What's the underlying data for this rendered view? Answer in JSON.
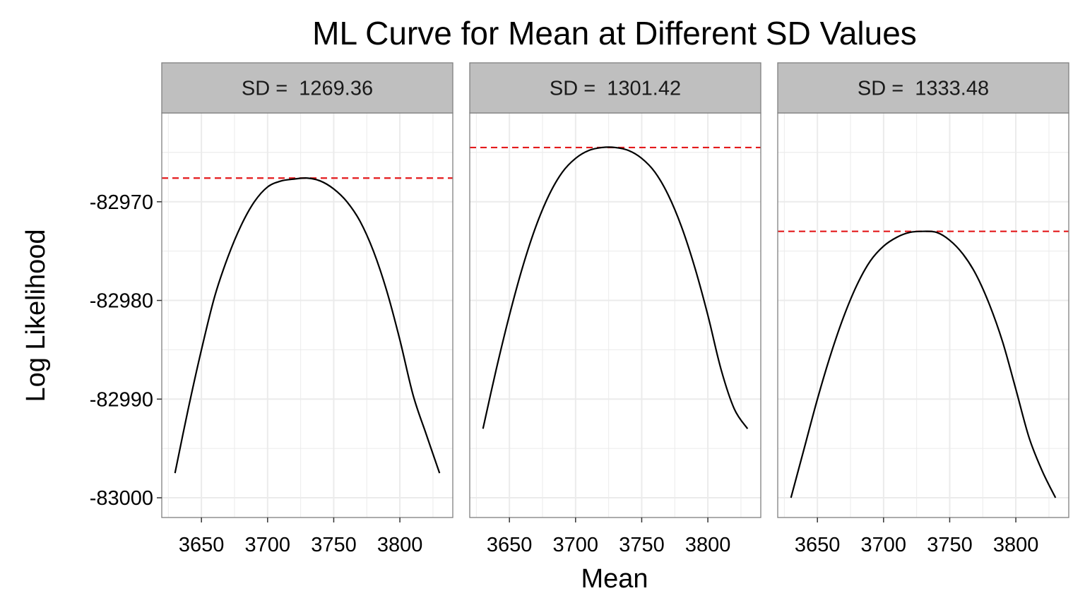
{
  "chart_data": {
    "type": "line",
    "title": "ML Curve for Mean at Different SD Values",
    "xlabel": "Mean",
    "ylabel": "Log Likelihood",
    "xlim": [
      3620,
      3840
    ],
    "ylim": [
      -83002,
      -82961
    ],
    "x_ticks": [
      3650,
      3700,
      3750,
      3800
    ],
    "y_ticks": [
      -82970,
      -82980,
      -82990,
      -83000
    ],
    "grid": true,
    "legend": "none",
    "colors": {
      "curve": "#000000",
      "reference_line": "#e41a1c",
      "strip_fill": "#bfbfbf",
      "grid": "#ebebeb",
      "border": "#7f7f7f"
    },
    "panels": [
      {
        "strip_prefix": "SD = ",
        "strip_value": "1269.36",
        "max_loglik": -82967.6,
        "series": [
          {
            "x": 3630,
            "y": -82997.5
          },
          {
            "x": 3640,
            "y": -82991.0
          },
          {
            "x": 3650,
            "y": -82985.0
          },
          {
            "x": 3660,
            "y": -82979.6
          },
          {
            "x": 3670,
            "y": -82975.6
          },
          {
            "x": 3680,
            "y": -82972.4
          },
          {
            "x": 3690,
            "y": -82970.0
          },
          {
            "x": 3700,
            "y": -82968.5
          },
          {
            "x": 3710,
            "y": -82967.9
          },
          {
            "x": 3720,
            "y": -82967.7
          },
          {
            "x": 3730,
            "y": -82967.6
          },
          {
            "x": 3740,
            "y": -82967.9
          },
          {
            "x": 3750,
            "y": -82968.7
          },
          {
            "x": 3760,
            "y": -82970.0
          },
          {
            "x": 3770,
            "y": -82972.0
          },
          {
            "x": 3780,
            "y": -82975.0
          },
          {
            "x": 3790,
            "y": -82979.0
          },
          {
            "x": 3800,
            "y": -82984.0
          },
          {
            "x": 3810,
            "y": -82989.6
          },
          {
            "x": 3820,
            "y": -82993.6
          },
          {
            "x": 3830,
            "y": -82997.5
          }
        ]
      },
      {
        "strip_prefix": "SD = ",
        "strip_value": "1301.42",
        "max_loglik": -82964.5,
        "series": [
          {
            "x": 3630,
            "y": -82993.0
          },
          {
            "x": 3640,
            "y": -82987.0
          },
          {
            "x": 3650,
            "y": -82981.5
          },
          {
            "x": 3660,
            "y": -82976.6
          },
          {
            "x": 3670,
            "y": -82972.5
          },
          {
            "x": 3680,
            "y": -82969.3
          },
          {
            "x": 3690,
            "y": -82967.0
          },
          {
            "x": 3700,
            "y": -82965.6
          },
          {
            "x": 3710,
            "y": -82964.8
          },
          {
            "x": 3720,
            "y": -82964.5
          },
          {
            "x": 3730,
            "y": -82964.5
          },
          {
            "x": 3740,
            "y": -82964.8
          },
          {
            "x": 3750,
            "y": -82965.6
          },
          {
            "x": 3760,
            "y": -82967.0
          },
          {
            "x": 3770,
            "y": -82969.3
          },
          {
            "x": 3780,
            "y": -82972.5
          },
          {
            "x": 3790,
            "y": -82976.6
          },
          {
            "x": 3800,
            "y": -82981.5
          },
          {
            "x": 3810,
            "y": -82987.0
          },
          {
            "x": 3820,
            "y": -82991.0
          },
          {
            "x": 3830,
            "y": -82993.0
          }
        ]
      },
      {
        "strip_prefix": "SD = ",
        "strip_value": "1333.48",
        "max_loglik": -82973.0,
        "series": [
          {
            "x": 3630,
            "y": -83000.0
          },
          {
            "x": 3640,
            "y": -82995.0
          },
          {
            "x": 3650,
            "y": -82990.0
          },
          {
            "x": 3660,
            "y": -82985.5
          },
          {
            "x": 3670,
            "y": -82981.6
          },
          {
            "x": 3680,
            "y": -82978.4
          },
          {
            "x": 3690,
            "y": -82976.0
          },
          {
            "x": 3700,
            "y": -82974.5
          },
          {
            "x": 3710,
            "y": -82973.6
          },
          {
            "x": 3720,
            "y": -82973.1
          },
          {
            "x": 3730,
            "y": -82973.0
          },
          {
            "x": 3740,
            "y": -82973.1
          },
          {
            "x": 3750,
            "y": -82973.9
          },
          {
            "x": 3760,
            "y": -82975.3
          },
          {
            "x": 3770,
            "y": -82977.4
          },
          {
            "x": 3780,
            "y": -82980.4
          },
          {
            "x": 3790,
            "y": -82984.2
          },
          {
            "x": 3800,
            "y": -82989.0
          },
          {
            "x": 3810,
            "y": -82993.9
          },
          {
            "x": 3820,
            "y": -82997.3
          },
          {
            "x": 3830,
            "y": -83000.0
          }
        ]
      }
    ]
  }
}
